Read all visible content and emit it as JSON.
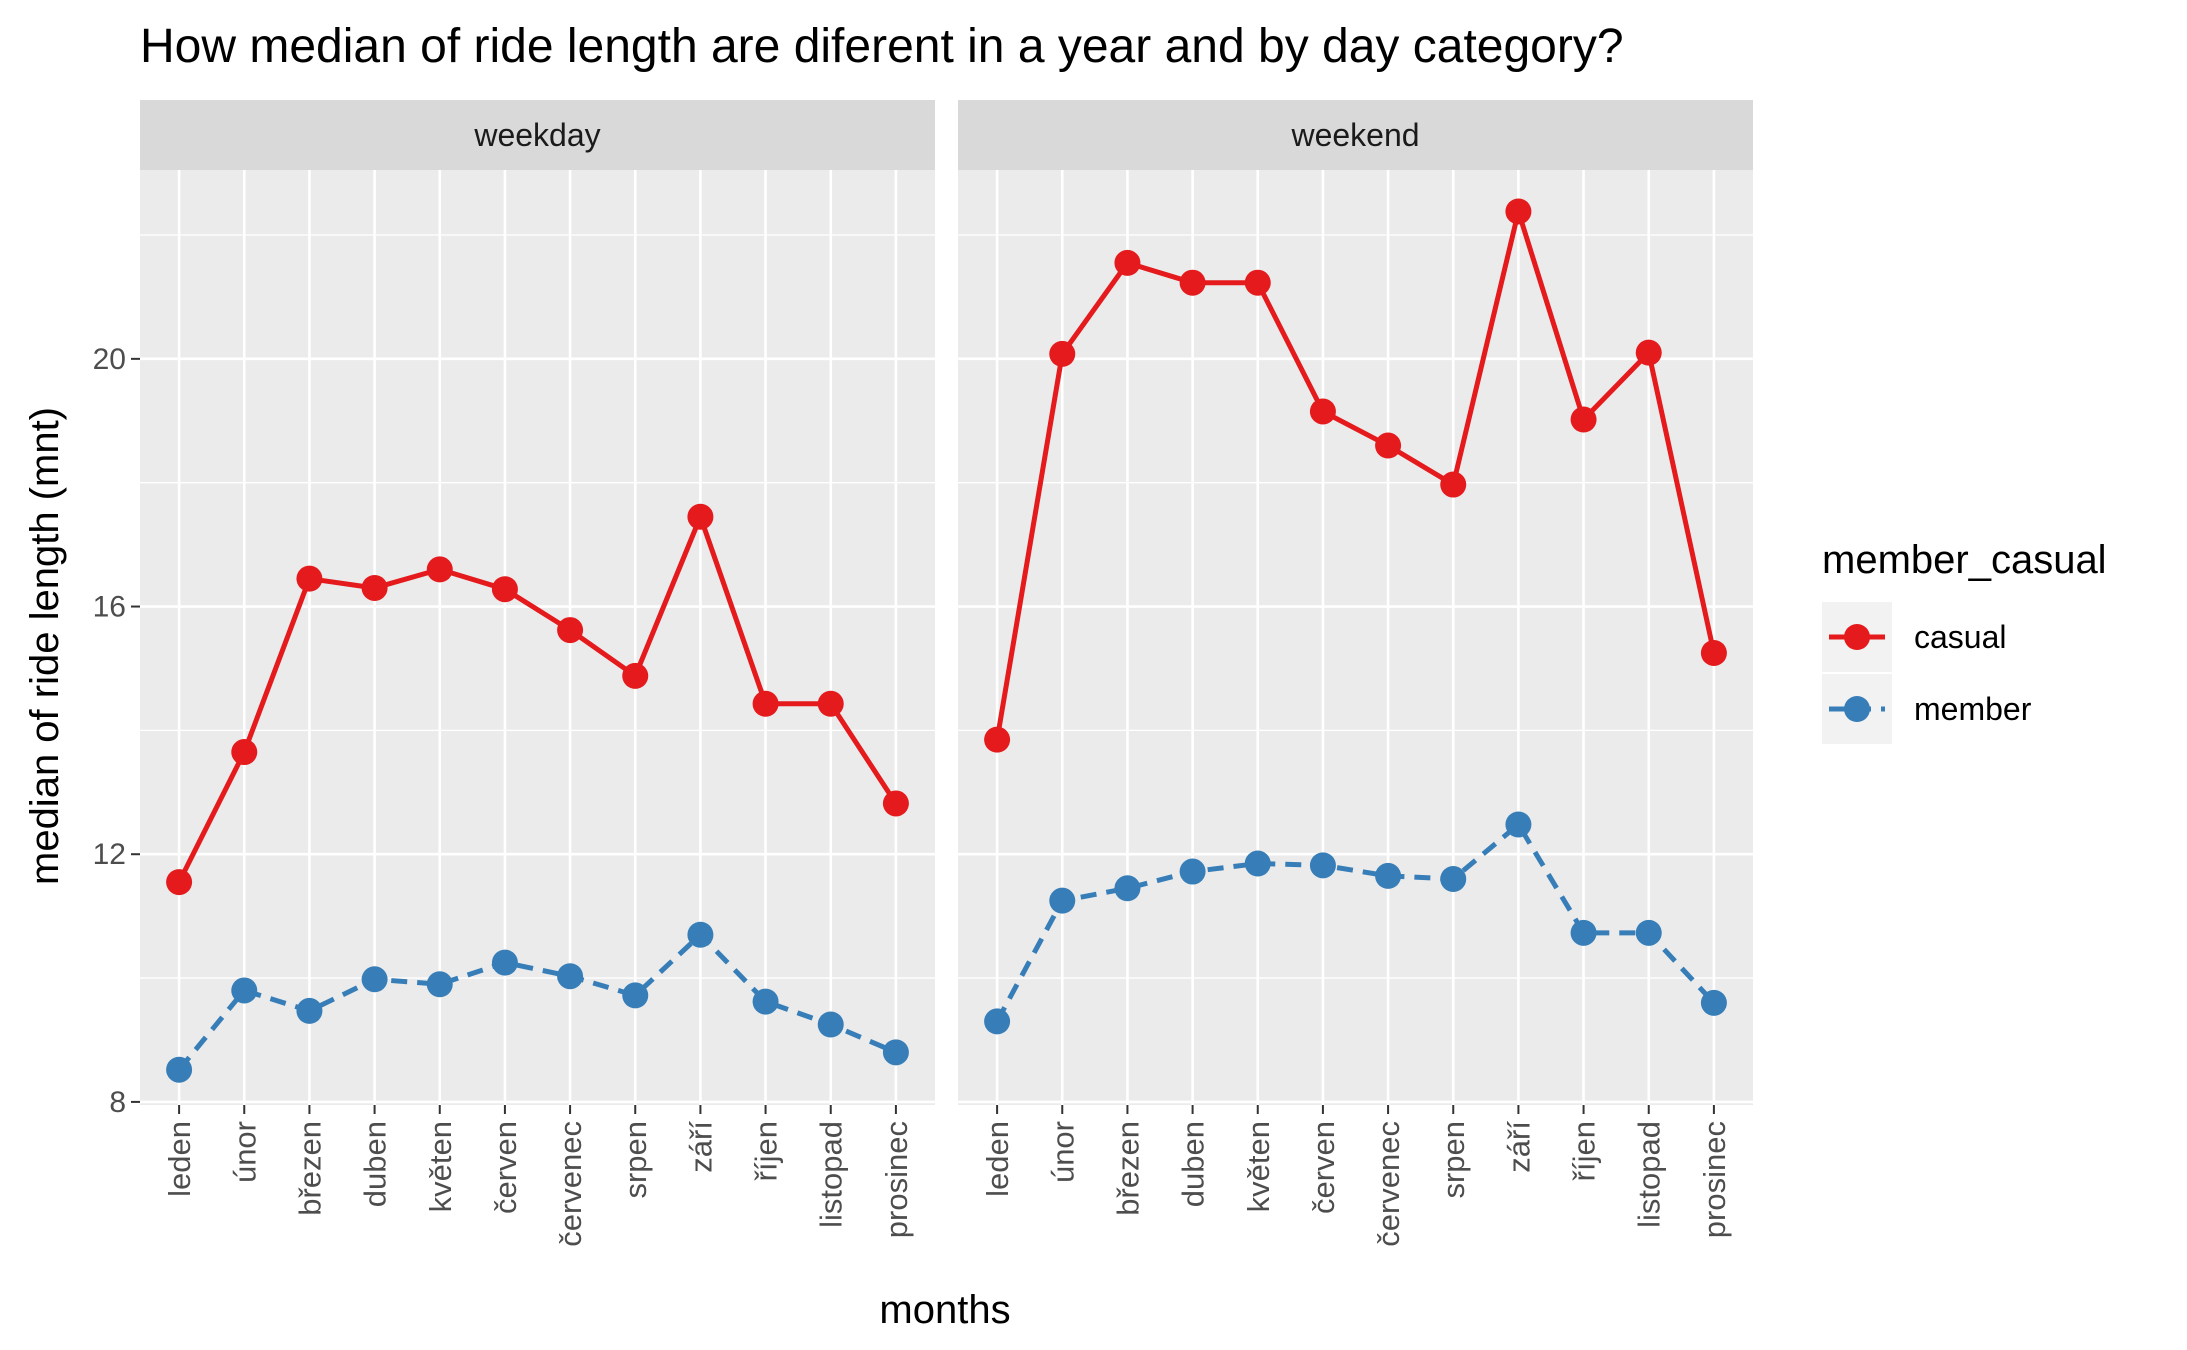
{
  "chart_data": {
    "type": "line",
    "title": "How median of ride length are diferent in a year and by day category?",
    "xlabel": "months",
    "ylabel": "median of ride length (mnt)",
    "categories": [
      "leden",
      "únor",
      "březen",
      "duben",
      "květen",
      "červen",
      "červenec",
      "srpen",
      "září",
      "říjen",
      "listopad",
      "prosinec"
    ],
    "ylim": [
      7.95,
      23.05
    ],
    "yticks": [
      8,
      12,
      16,
      20
    ],
    "y_tick_labels": [
      "8",
      "12",
      "16",
      "20"
    ],
    "grid": true,
    "legend": {
      "title": "member_casual",
      "position": "right",
      "entries": [
        "casual",
        "member"
      ]
    },
    "facets": [
      {
        "label": "weekday",
        "series": [
          {
            "name": "casual",
            "color": "#E41A1C",
            "linetype": "solid",
            "values": [
              11.55,
              13.65,
              16.45,
              16.3,
              16.6,
              16.28,
              15.62,
              14.88,
              17.45,
              14.43,
              14.43,
              12.82
            ]
          },
          {
            "name": "member",
            "color": "#377EB8",
            "linetype": "dashed",
            "values": [
              8.52,
              9.8,
              9.47,
              9.98,
              9.9,
              10.25,
              10.03,
              9.72,
              10.7,
              9.62,
              9.25,
              8.8
            ]
          }
        ]
      },
      {
        "label": "weekend",
        "series": [
          {
            "name": "casual",
            "color": "#E41A1C",
            "linetype": "solid",
            "values": [
              13.85,
              20.08,
              21.55,
              21.23,
              21.23,
              19.15,
              18.6,
              17.97,
              22.38,
              19.02,
              20.1,
              15.25
            ]
          },
          {
            "name": "member",
            "color": "#377EB8",
            "linetype": "dashed",
            "values": [
              9.3,
              11.25,
              11.45,
              11.72,
              11.85,
              11.82,
              11.65,
              11.6,
              12.48,
              10.73,
              10.73,
              9.6
            ]
          }
        ]
      }
    ]
  }
}
